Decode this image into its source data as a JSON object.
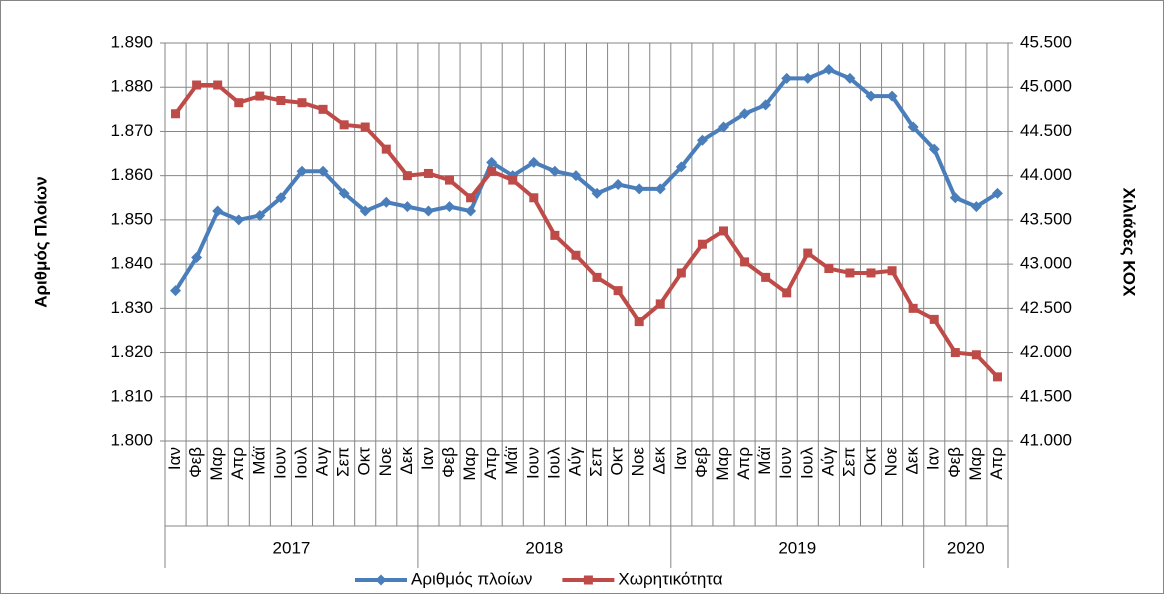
{
  "chart_data": {
    "type": "line",
    "category_groups": [
      {
        "name": "2017",
        "categories": [
          "Ιαν",
          "Φεβ",
          "Μαρ",
          "Απρ",
          "Μάϊ",
          "Ιουν",
          "Ιουλ",
          "Αυγ",
          "Σεπ",
          "Οκτ",
          "Νοε",
          "Δεκ"
        ]
      },
      {
        "name": "2018",
        "categories": [
          "Ιαν",
          "Φεβ",
          "Μαρ",
          "Απρ",
          "Μάϊ",
          "Ιουν",
          "Ιουλ",
          "Αύγ",
          "Σεπ",
          "Οκτ",
          "Νοε",
          "Δεκ"
        ]
      },
      {
        "name": "2019",
        "categories": [
          "Ιαν",
          "Φεβ",
          "Μαρ",
          "Απρ",
          "Μάϊ",
          "Ιουν",
          "Ιουλ",
          "Αύγ",
          "Σεπ",
          "Οκτ",
          "Νοε",
          "Δεκ"
        ]
      },
      {
        "name": "2020",
        "categories": [
          "Ιαν",
          "Φεβ",
          "Μαρ",
          "Απρ"
        ]
      }
    ],
    "ylabel": "Αριθμός Πλοίων",
    "y2label": "Χιλιάδες ΚΟΧ",
    "ylim": [
      1800,
      1890
    ],
    "yticks": [
      {
        "value": 1800,
        "label": "1.800"
      },
      {
        "value": 1810,
        "label": "1.810"
      },
      {
        "value": 1820,
        "label": "1.820"
      },
      {
        "value": 1830,
        "label": "1.830"
      },
      {
        "value": 1840,
        "label": "1.840"
      },
      {
        "value": 1850,
        "label": "1.850"
      },
      {
        "value": 1860,
        "label": "1.860"
      },
      {
        "value": 1870,
        "label": "1.870"
      },
      {
        "value": 1880,
        "label": "1.880"
      },
      {
        "value": 1890,
        "label": "1.890"
      }
    ],
    "y2lim": [
      41000,
      45500
    ],
    "y2ticks": [
      {
        "value": 41000,
        "label": "41.000"
      },
      {
        "value": 41500,
        "label": "41.500"
      },
      {
        "value": 42000,
        "label": "42.000"
      },
      {
        "value": 42500,
        "label": "42.500"
      },
      {
        "value": 43000,
        "label": "43.000"
      },
      {
        "value": 43500,
        "label": "43.500"
      },
      {
        "value": 44000,
        "label": "44.000"
      },
      {
        "value": 44500,
        "label": "44.500"
      },
      {
        "value": 45000,
        "label": "45.000"
      },
      {
        "value": 45500,
        "label": "45.500"
      }
    ],
    "grid": true,
    "legend": "bottom",
    "series": [
      {
        "name": "Αριθμός πλοίων",
        "color": "#4a7ebb",
        "marker": "diamond",
        "values": [
          1834,
          1841.5,
          1852,
          1850,
          1851,
          1855,
          1861,
          1861,
          1856,
          1852,
          1854,
          1853,
          1852,
          1853,
          1852,
          1863,
          1860,
          1863,
          1861,
          1860,
          1856,
          1858,
          1857,
          1857,
          1862,
          1868,
          1871,
          1874,
          1876,
          1882,
          1882,
          1884,
          1882,
          1878,
          1878,
          1871,
          1866,
          1855,
          1853,
          1856
        ]
      },
      {
        "name": "Χωρητικότητα",
        "color": "#be4b48",
        "marker": "square",
        "axis": "y2",
        "values": [
          44700,
          45025,
          45025,
          44825,
          44900,
          44850,
          44825,
          44750,
          44575,
          44550,
          44300,
          44000,
          44025,
          43950,
          43750,
          44050,
          43950,
          43750,
          43325,
          43100,
          42850,
          42700,
          42350,
          42550,
          42900,
          43225,
          43375,
          43025,
          42850,
          42675,
          43125,
          42950,
          42900,
          42900,
          42925,
          42500,
          42375,
          42000,
          41975,
          41725
        ]
      }
    ]
  }
}
